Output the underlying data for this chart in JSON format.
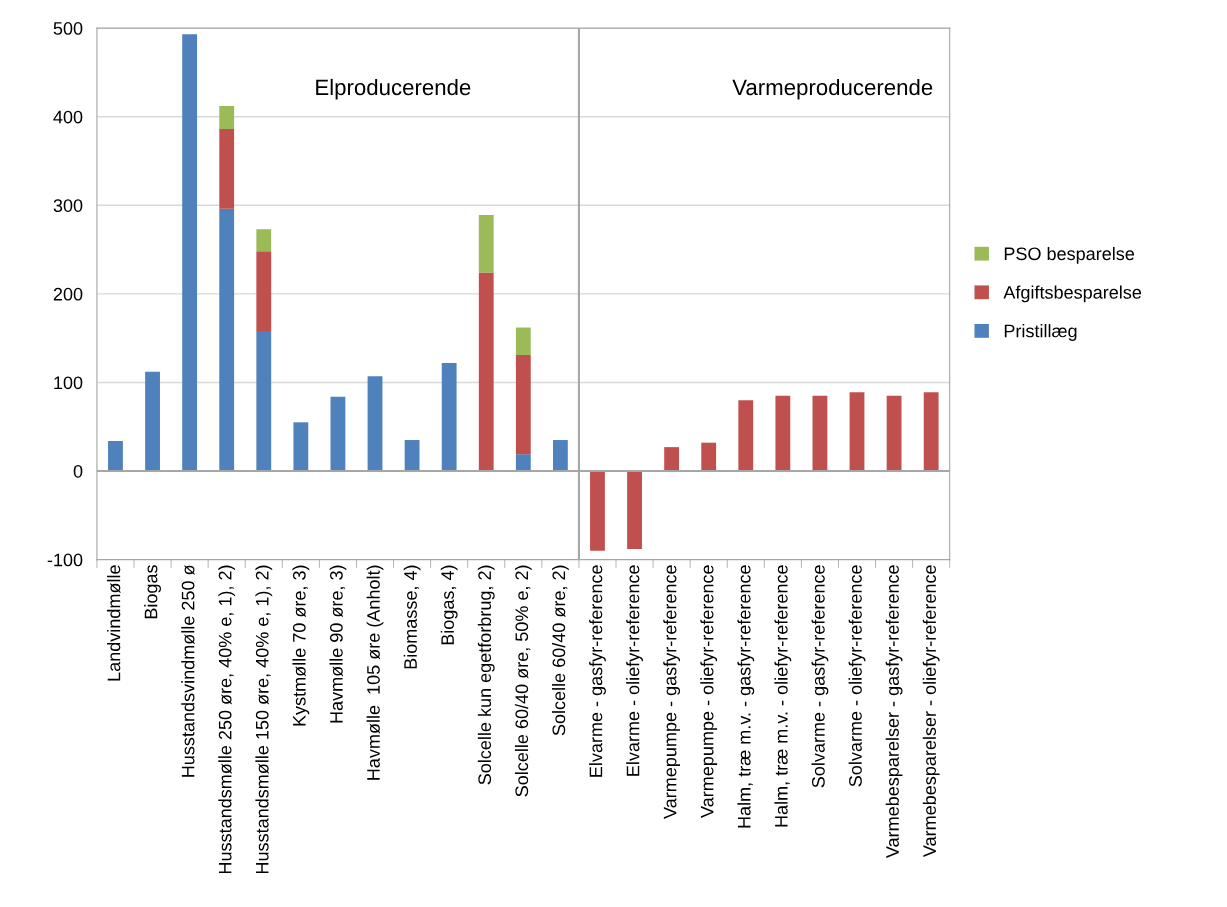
{
  "chart_data": {
    "type": "bar",
    "stacked": true,
    "categories": [
      "Landvindmølle",
      "Biogas",
      "Husstandsvindmølle 250 ø",
      "Husstandsmølle 250 øre, 40% e, 1), 2)",
      "Husstandsmølle 150 øre, 40% e, 1), 2)",
      "Kystmølle 70 øre, 3)",
      "Havmølle 90 øre, 3)",
      "Havmølle  105 øre (Anholt)",
      "Biomasse, 4)",
      "Biogas, 4)",
      "Solcelle kun egetforbrug, 2)",
      "Solcelle 60/40 øre, 50% e, 2)",
      "Solcelle 60/40 øre, 2)",
      "Elvarme - gasfyr-reference",
      "Elvarme - oliefyr-reference",
      "Varmepumpe - gasfyr-reference",
      "Varmepumpe - oliefyr-reference",
      "Halm, træ m.v. - gasfyr-reference",
      "Halm, træ m.v. - oliefyr-reference",
      "Solvarme - gasfyr-reference",
      "Solvarme - oliefyr-reference",
      "Varmebesparelser - gasfyr-reference",
      "Varmebesparelser - oliefyr-reference"
    ],
    "series": [
      {
        "name": "Pristillæg",
        "color": "#4f81bd",
        "values": [
          34,
          112,
          493,
          296,
          158,
          55,
          84,
          107,
          35,
          122,
          null,
          19,
          35,
          null,
          null,
          null,
          null,
          null,
          null,
          null,
          null,
          null,
          null
        ]
      },
      {
        "name": "Afgiftsbesparelse",
        "color": "#c0504d",
        "values": [
          null,
          null,
          null,
          90,
          90,
          null,
          null,
          null,
          null,
          null,
          224,
          112,
          null,
          -90,
          -88,
          27,
          32,
          80,
          85,
          85,
          89,
          85,
          89
        ]
      },
      {
        "name": "PSO besparelse",
        "color": "#9bbb59",
        "values": [
          null,
          null,
          null,
          26,
          25,
          null,
          null,
          null,
          null,
          null,
          65,
          31,
          null,
          null,
          null,
          null,
          null,
          null,
          null,
          null,
          null,
          null,
          null
        ]
      }
    ],
    "ylim": [
      -100,
      500
    ],
    "yticks": [
      -100,
      0,
      100,
      200,
      300,
      400,
      500
    ],
    "grid": "y",
    "legend": "right",
    "annotations": [
      "Elproducerende",
      "Varmeproducerende"
    ]
  }
}
